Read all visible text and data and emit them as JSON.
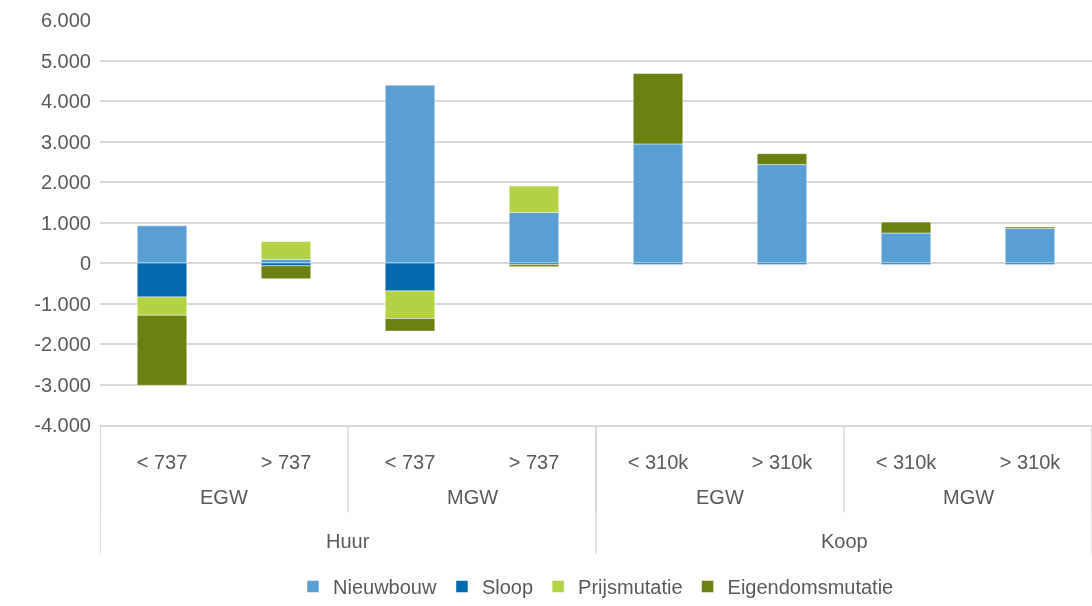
{
  "chart_data": {
    "type": "bar",
    "stacked": true,
    "categories": [
      "< 737",
      "> 737",
      "< 737",
      "> 737",
      "< 310k",
      "> 310k",
      "< 310k",
      "> 310k"
    ],
    "series": [
      {
        "name": "Nieuwbouw",
        "color": "#599fd3",
        "values": [
          920,
          90,
          4390,
          1250,
          2940,
          2430,
          740,
          850
        ]
      },
      {
        "name": "Sloop",
        "color": "#0069b0",
        "values": [
          -840,
          -70,
          -690,
          -40,
          -40,
          -40,
          -40,
          -40
        ]
      },
      {
        "name": "Prijsmutatie",
        "color": "#b3d345",
        "values": [
          -450,
          440,
          -680,
          650,
          null,
          null,
          null,
          null
        ]
      },
      {
        "name": "Eigendomsmutatie",
        "color": "#6a800f",
        "values": [
          -1730,
          -320,
          -310,
          -50,
          1740,
          270,
          270,
          40
        ]
      }
    ],
    "annotations": [
      "EGW",
      "MGW",
      "EGW",
      "MGW",
      "Huur",
      "Koop"
    ],
    "ylim": [
      -4000,
      6000
    ],
    "yticks": [
      {
        "value": -4000,
        "label": "-4.000"
      },
      {
        "value": -3000,
        "label": "-3.000"
      },
      {
        "value": -2000,
        "label": "-2.000"
      },
      {
        "value": -1000,
        "label": "-1.000"
      },
      0,
      {
        "value": 1000,
        "label": "1.000"
      },
      {
        "value": 2000,
        "label": "2.000"
      },
      {
        "value": 3000,
        "label": "3.000"
      },
      {
        "value": 4000,
        "label": "4.000"
      },
      {
        "value": 5000,
        "label": "5.000"
      },
      {
        "value": 6000,
        "label": "6.000"
      }
    ],
    "grid": "y",
    "legend": "bottom"
  }
}
